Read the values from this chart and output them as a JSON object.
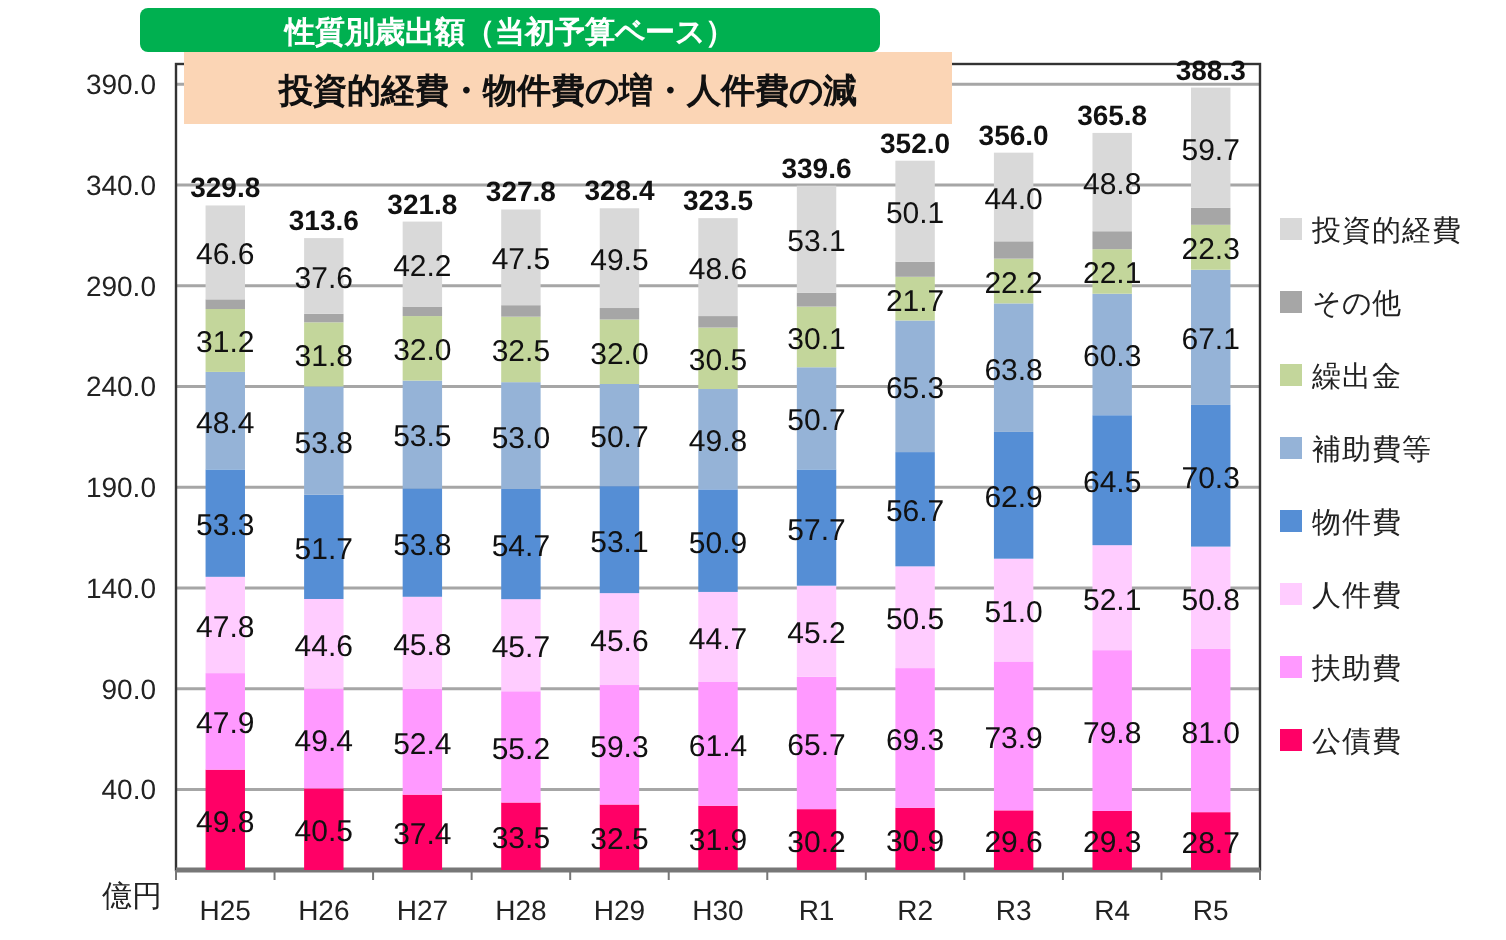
{
  "chart_data": {
    "type": "bar",
    "stacked": true,
    "title": "性質別歳出額（当初予算ベース）",
    "subtitle": "投資的経費・物件費の増・人件費の減",
    "ylabel": "億円",
    "categories": [
      "H25",
      "H26",
      "H27",
      "H28",
      "H29",
      "H30",
      "R1",
      "R2",
      "R3",
      "R4",
      "R5"
    ],
    "ylim": [
      0,
      400
    ],
    "yticks": [
      {
        "value": 40,
        "label": "40.0"
      },
      {
        "value": 90,
        "label": "90.0"
      },
      {
        "value": 140,
        "label": "140.0"
      },
      {
        "value": 190,
        "label": "190.0"
      },
      {
        "value": 240,
        "label": "240.0"
      },
      {
        "value": 290,
        "label": "290.0"
      },
      {
        "value": 340,
        "label": "340.0"
      },
      {
        "value": 390,
        "label": "390.0"
      }
    ],
    "grid": "y",
    "legend": "right",
    "series": [
      {
        "name": "公債費",
        "color": "#ff0066",
        "values": [
          49.8,
          40.5,
          37.4,
          33.5,
          32.5,
          31.9,
          30.2,
          30.9,
          29.6,
          29.3,
          28.7
        ],
        "value_labels": [
          "49.8",
          "40.5",
          "37.4",
          "33.5",
          "32.5",
          "31.9",
          "30.2",
          "30.9",
          "29.6",
          "29.3",
          "28.7"
        ]
      },
      {
        "name": "扶助費",
        "color": "#ff99ff",
        "values": [
          47.9,
          49.4,
          52.4,
          55.2,
          59.3,
          61.4,
          65.7,
          69.3,
          73.9,
          79.8,
          81.0
        ],
        "value_labels": [
          "47.9",
          "49.4",
          "52.4",
          "55.2",
          "59.3",
          "61.4",
          "65.7",
          "69.3",
          "73.9",
          "79.8",
          "81.0"
        ]
      },
      {
        "name": "人件費",
        "color": "#ffccff",
        "values": [
          47.8,
          44.6,
          45.8,
          45.7,
          45.6,
          44.7,
          45.2,
          50.5,
          51.0,
          52.1,
          50.8
        ],
        "value_labels": [
          "47.8",
          "44.6",
          "45.8",
          "45.7",
          "45.6",
          "44.7",
          "45.2",
          "50.5",
          "51.0",
          "52.1",
          "50.8"
        ]
      },
      {
        "name": "物件費",
        "color": "#558ed5",
        "values": [
          53.3,
          51.7,
          53.8,
          54.7,
          53.1,
          50.9,
          57.7,
          56.7,
          62.9,
          64.5,
          70.3
        ],
        "value_labels": [
          "53.3",
          "51.7",
          "53.8",
          "54.7",
          "53.1",
          "50.9",
          "57.7",
          "56.7",
          "62.9",
          "64.5",
          "70.3"
        ]
      },
      {
        "name": "補助費等",
        "color": "#95b3d7",
        "values": [
          48.4,
          53.8,
          53.5,
          53.0,
          50.7,
          49.8,
          50.7,
          65.3,
          63.8,
          60.3,
          67.1
        ],
        "value_labels": [
          "48.4",
          "53.8",
          "53.5",
          "53.0",
          "50.7",
          "49.8",
          "50.7",
          "65.3",
          "63.8",
          "60.3",
          "67.1"
        ]
      },
      {
        "name": "繰出金",
        "color": "#c3d69b",
        "values": [
          31.2,
          31.8,
          32.0,
          32.5,
          32.0,
          30.5,
          30.1,
          21.7,
          22.2,
          22.1,
          22.3
        ],
        "value_labels": [
          "31.2",
          "31.8",
          "32.0",
          "32.5",
          "32.0",
          "30.5",
          "30.1",
          "21.7",
          "22.2",
          "22.1",
          "22.3"
        ]
      },
      {
        "name": "その他",
        "color": "#a6a6a6",
        "values": [
          4.8,
          4.2,
          4.7,
          5.7,
          5.7,
          5.7,
          6.9,
          7.5,
          8.6,
          8.9,
          8.4
        ]
      },
      {
        "name": "投資的経費",
        "color": "#d9d9d9",
        "values": [
          46.6,
          37.6,
          42.2,
          47.5,
          49.5,
          48.6,
          53.1,
          50.1,
          44.0,
          48.8,
          59.7
        ],
        "value_labels": [
          "46.6",
          "37.6",
          "42.2",
          "47.5",
          "49.5",
          "48.6",
          "53.1",
          "50.1",
          "44.0",
          "48.8",
          "59.7"
        ]
      }
    ],
    "totals": [
      "329.8",
      "313.6",
      "321.8",
      "327.8",
      "328.4",
      "323.5",
      "339.6",
      "352.0",
      "356.0",
      "365.8",
      "388.3"
    ]
  }
}
